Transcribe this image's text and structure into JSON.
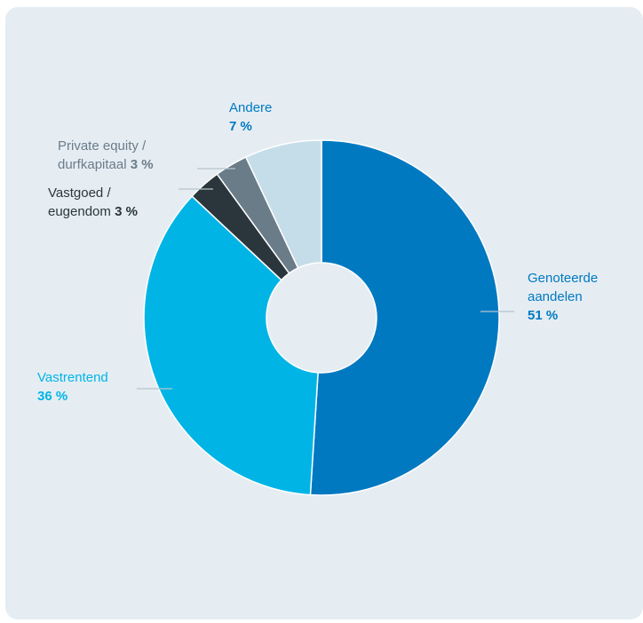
{
  "chart_data": {
    "type": "pie",
    "donut": true,
    "title": "",
    "start_angle_deg": 0,
    "direction": "clockwise",
    "slices": [
      {
        "label": "Genoteerde aandelen",
        "label_lines": [
          "Genoteerde",
          "aandelen"
        ],
        "value": 51,
        "value_text": "51 %",
        "color": "#0079c1",
        "text_color": "#0079c1"
      },
      {
        "label": "Vastrentend",
        "label_lines": [
          "Vastrentend"
        ],
        "value": 36,
        "value_text": "36 %",
        "color": "#00b5e6",
        "text_color": "#00b5e6"
      },
      {
        "label": "Vastgoed / eugendom",
        "label_lines": [
          "Vastgoed /",
          "eugendom"
        ],
        "value": 3,
        "value_text": "3 %",
        "color": "#2a363c",
        "text_color": "#2a363c"
      },
      {
        "label": "Private equity / durfkapitaal",
        "label_lines": [
          "Private equity /",
          "durfkapitaal"
        ],
        "value": 3,
        "value_text": "3 %",
        "color": "#6b7c89",
        "text_color": "#6b7c89"
      },
      {
        "label": "Andere",
        "label_lines": [
          "Andere"
        ],
        "value": 7,
        "value_text": "7 %",
        "color": "#c5dde8",
        "text_color": "#0079c1"
      }
    ]
  },
  "colors": {
    "background": "#e5edf3",
    "leader_line": "#b7c4cc",
    "separator": "#ffffff"
  }
}
